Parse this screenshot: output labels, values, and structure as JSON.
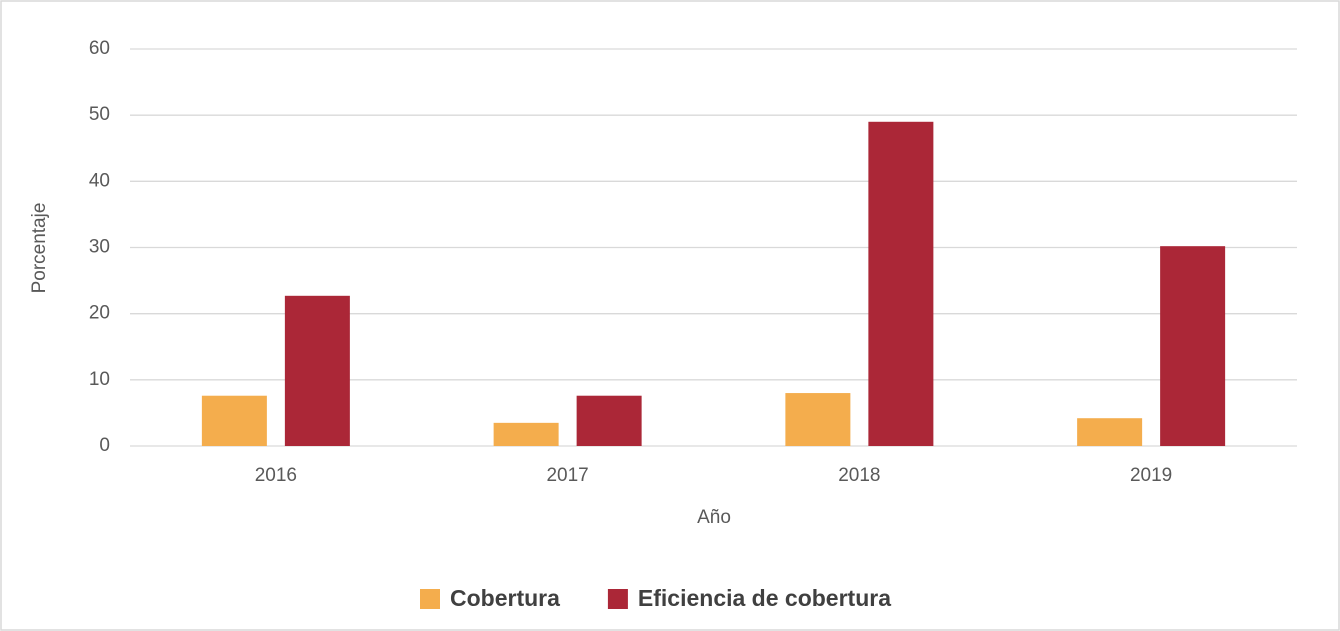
{
  "chart_data": {
    "type": "bar",
    "categories": [
      "2016",
      "2017",
      "2018",
      "2019"
    ],
    "series": [
      {
        "name": "Cobertura",
        "color": "#f4ad4d",
        "values": [
          7.6,
          3.5,
          8.0,
          4.2
        ]
      },
      {
        "name": "Eficiencia de cobertura",
        "color": "#ab2737",
        "values": [
          22.7,
          7.6,
          49.0,
          30.2
        ]
      }
    ],
    "ylim": [
      0,
      60
    ],
    "yticks": [
      0,
      10,
      20,
      30,
      40,
      50,
      60
    ],
    "y_label": "Porcentaje",
    "x_label": "Año",
    "grid": true,
    "legend": "bottom"
  }
}
